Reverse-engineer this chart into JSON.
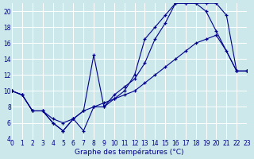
{
  "xlabel": "Graphe des températures (°C)",
  "bg_color": "#cce8ea",
  "grid_color": "#ffffff",
  "line_color": "#00008b",
  "xlim": [
    0,
    23
  ],
  "ylim": [
    4,
    21
  ],
  "yticks": [
    4,
    6,
    8,
    10,
    12,
    14,
    16,
    18,
    20
  ],
  "xticks": [
    0,
    1,
    2,
    3,
    4,
    5,
    6,
    7,
    8,
    9,
    10,
    11,
    12,
    13,
    14,
    15,
    16,
    17,
    18,
    19,
    20,
    21,
    22,
    23
  ],
  "line1_x": [
    0,
    1,
    2,
    3,
    4,
    5,
    6,
    7,
    8,
    9,
    10,
    11,
    12,
    13,
    14,
    15,
    16,
    17,
    18,
    19,
    20,
    21,
    22,
    23
  ],
  "line1_y": [
    10.0,
    9.5,
    7.5,
    7.5,
    6.5,
    6.0,
    6.5,
    7.5,
    8.0,
    8.5,
    9.0,
    9.5,
    10.0,
    11.0,
    12.0,
    13.0,
    14.0,
    15.0,
    16.0,
    16.5,
    17.0,
    15.0,
    12.5,
    12.5
  ],
  "line2_x": [
    0,
    1,
    2,
    3,
    4,
    5,
    6,
    7,
    8,
    9,
    10,
    11,
    12,
    13,
    14,
    15,
    16,
    17,
    18,
    19,
    20,
    21,
    22,
    23
  ],
  "line2_y": [
    10.0,
    9.5,
    7.5,
    7.5,
    6.0,
    5.0,
    6.5,
    5.0,
    8.0,
    8.0,
    9.5,
    10.5,
    11.5,
    13.5,
    16.5,
    18.5,
    21.0,
    21.0,
    21.0,
    21.0,
    21.0,
    19.5,
    12.5,
    12.5
  ],
  "line3_x": [
    0,
    1,
    2,
    3,
    4,
    5,
    6,
    7,
    8,
    9,
    10,
    11,
    12,
    13,
    14,
    15,
    16,
    17,
    18,
    19,
    20,
    22,
    23
  ],
  "line3_y": [
    10.0,
    9.5,
    7.5,
    7.5,
    6.0,
    5.0,
    6.5,
    7.5,
    14.5,
    8.0,
    9.0,
    10.0,
    12.0,
    16.5,
    18.0,
    19.5,
    21.0,
    21.0,
    21.0,
    20.0,
    17.5,
    12.5,
    12.5
  ]
}
